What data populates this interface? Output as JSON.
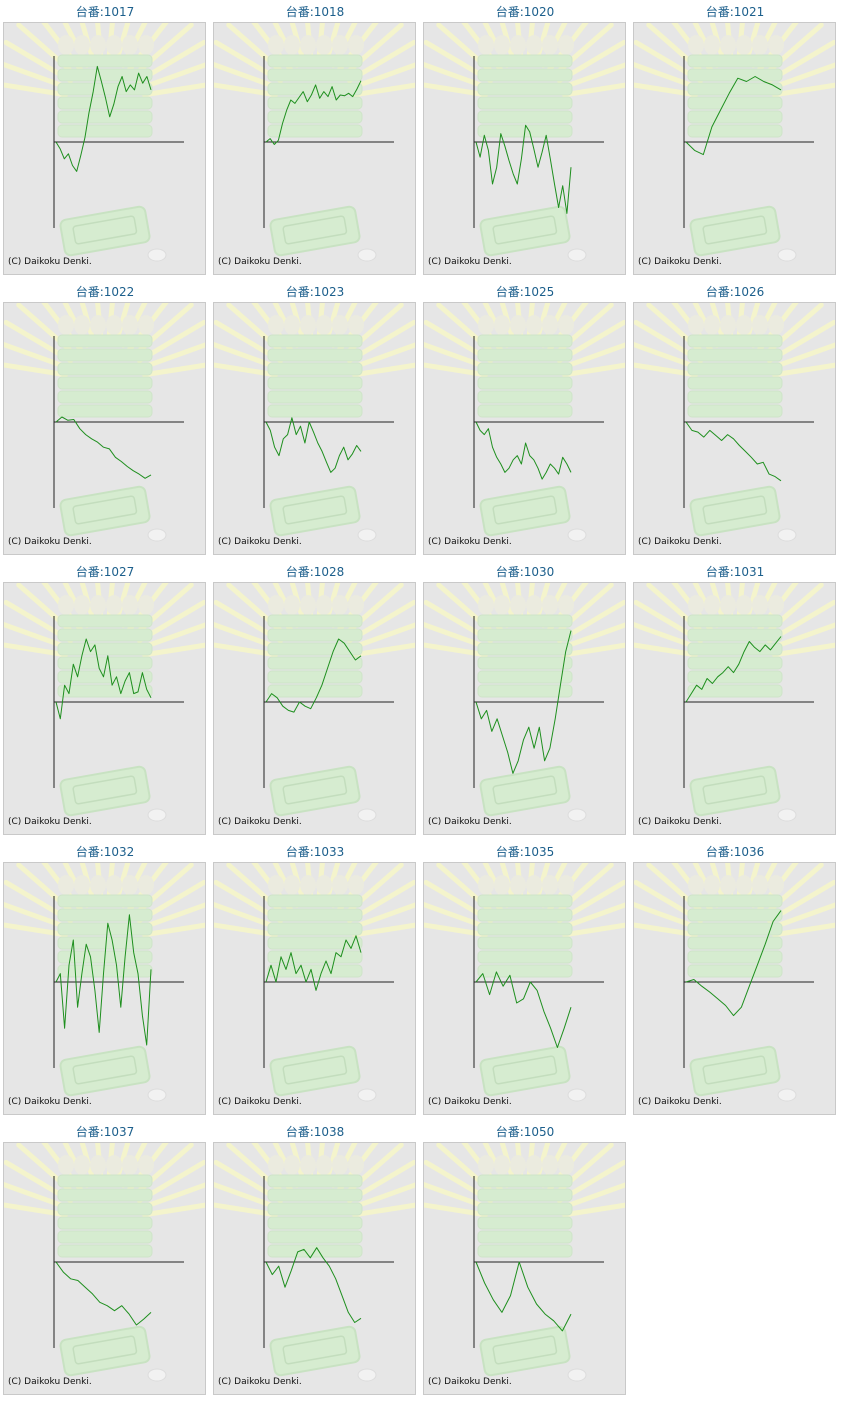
{
  "chart_data": [
    {
      "type": "line",
      "title": "台番:1017",
      "copyright": "(C) Daikoku Denki.",
      "values": [
        0,
        -0.08,
        -0.2,
        -0.14,
        -0.28,
        -0.35,
        -0.16,
        0.05,
        0.35,
        0.6,
        0.9,
        0.72,
        0.52,
        0.3,
        0.45,
        0.66,
        0.78,
        0.6,
        0.68,
        0.62,
        0.82,
        0.7,
        0.78,
        0.62
      ]
    },
    {
      "type": "line",
      "title": "台番:1018",
      "copyright": "(C) Daikoku Denki.",
      "values": [
        0,
        0.04,
        -0.03,
        0.02,
        0.22,
        0.38,
        0.5,
        0.46,
        0.53,
        0.6,
        0.48,
        0.56,
        0.68,
        0.52,
        0.6,
        0.54,
        0.66,
        0.5,
        0.56,
        0.55,
        0.58,
        0.54,
        0.63,
        0.73
      ]
    },
    {
      "type": "line",
      "title": "台番:1020",
      "copyright": "(C) Daikoku Denki.",
      "values": [
        0,
        -0.18,
        0.08,
        -0.1,
        -0.5,
        -0.3,
        0.1,
        -0.05,
        -0.22,
        -0.38,
        -0.5,
        -0.2,
        0.2,
        0.12,
        -0.08,
        -0.3,
        -0.12,
        0.08,
        -0.2,
        -0.5,
        -0.78,
        -0.52,
        -0.85,
        -0.3
      ]
    },
    {
      "type": "line",
      "title": "台番:1021",
      "copyright": "(C) Daikoku Denki.",
      "values": [
        0,
        -0.1,
        -0.15,
        0.18,
        0.38,
        0.58,
        0.76,
        0.72,
        0.78,
        0.72,
        0.68,
        0.62
      ]
    },
    {
      "type": "line",
      "title": "台番:1022",
      "copyright": "(C) Daikoku Denki.",
      "values": [
        0,
        0.06,
        0.02,
        0.03,
        -0.08,
        -0.15,
        -0.2,
        -0.24,
        -0.3,
        -0.32,
        -0.42,
        -0.47,
        -0.53,
        -0.58,
        -0.62,
        -0.67,
        -0.63
      ]
    },
    {
      "type": "line",
      "title": "台番:1023",
      "copyright": "(C) Daikoku Denki.",
      "values": [
        0,
        -0.1,
        -0.3,
        -0.4,
        -0.2,
        -0.15,
        0.05,
        -0.15,
        -0.05,
        -0.25,
        0,
        -0.12,
        -0.25,
        -0.35,
        -0.48,
        -0.6,
        -0.55,
        -0.4,
        -0.3,
        -0.45,
        -0.38,
        -0.28,
        -0.35
      ]
    },
    {
      "type": "line",
      "title": "台番:1025",
      "copyright": "(C) Daikoku Denki.",
      "values": [
        0,
        -0.1,
        -0.15,
        -0.08,
        -0.3,
        -0.42,
        -0.5,
        -0.6,
        -0.55,
        -0.45,
        -0.4,
        -0.5,
        -0.25,
        -0.4,
        -0.45,
        -0.55,
        -0.68,
        -0.6,
        -0.5,
        -0.55,
        -0.62,
        -0.42,
        -0.5,
        -0.6
      ]
    },
    {
      "type": "line",
      "title": "台番:1026",
      "copyright": "(C) Daikoku Denki.",
      "values": [
        0,
        -0.1,
        -0.12,
        -0.18,
        -0.1,
        -0.16,
        -0.22,
        -0.15,
        -0.2,
        -0.28,
        -0.35,
        -0.42,
        -0.5,
        -0.48,
        -0.62,
        -0.65,
        -0.7
      ]
    },
    {
      "type": "line",
      "title": "台番:1027",
      "copyright": "(C) Daikoku Denki.",
      "values": [
        0,
        -0.2,
        0.2,
        0.1,
        0.45,
        0.3,
        0.55,
        0.75,
        0.6,
        0.68,
        0.4,
        0.3,
        0.55,
        0.2,
        0.3,
        0.1,
        0.25,
        0.35,
        0.1,
        0.12,
        0.35,
        0.15,
        0.05
      ]
    },
    {
      "type": "line",
      "title": "台番:1028",
      "copyright": "(C) Daikoku Denki.",
      "values": [
        0,
        0.1,
        0.05,
        -0.05,
        -0.1,
        -0.12,
        0,
        -0.05,
        -0.08,
        0.05,
        0.2,
        0.4,
        0.6,
        0.75,
        0.7,
        0.6,
        0.5,
        0.55
      ]
    },
    {
      "type": "line",
      "title": "台番:1030",
      "copyright": "(C) Daikoku Denki.",
      "values": [
        0,
        -0.2,
        -0.1,
        -0.35,
        -0.2,
        -0.4,
        -0.6,
        -0.85,
        -0.7,
        -0.45,
        -0.3,
        -0.55,
        -0.3,
        -0.7,
        -0.55,
        -0.2,
        0.2,
        0.6,
        0.85
      ]
    },
    {
      "type": "line",
      "title": "台番:1031",
      "copyright": "(C) Daikoku Denki.",
      "values": [
        0,
        0.1,
        0.2,
        0.15,
        0.28,
        0.22,
        0.3,
        0.35,
        0.42,
        0.35,
        0.45,
        0.6,
        0.72,
        0.65,
        0.6,
        0.68,
        0.62,
        0.7,
        0.78
      ]
    },
    {
      "type": "line",
      "title": "台番:1032",
      "copyright": "(C) Daikoku Denki.",
      "values": [
        0,
        0.1,
        -0.55,
        0.2,
        0.5,
        -0.3,
        0.1,
        0.45,
        0.3,
        -0.1,
        -0.6,
        0.1,
        0.7,
        0.5,
        0.2,
        -0.3,
        0.3,
        0.8,
        0.35,
        0.1,
        -0.4,
        -0.75,
        0.15
      ]
    },
    {
      "type": "line",
      "title": "台番:1033",
      "copyright": "(C) Daikoku Denki.",
      "values": [
        0,
        0.2,
        0,
        0.3,
        0.15,
        0.35,
        0.1,
        0.2,
        0,
        0.15,
        -0.1,
        0.1,
        0.25,
        0.1,
        0.35,
        0.3,
        0.5,
        0.4,
        0.55,
        0.35
      ]
    },
    {
      "type": "line",
      "title": "台番:1035",
      "copyright": "(C) Daikoku Denki.",
      "values": [
        0,
        0.1,
        -0.15,
        0.12,
        -0.05,
        0.08,
        -0.25,
        -0.2,
        0,
        -0.1,
        -0.35,
        -0.55,
        -0.78,
        -0.55,
        -0.3
      ]
    },
    {
      "type": "line",
      "title": "台番:1036",
      "copyright": "(C) Daikoku Denki.",
      "values": [
        0,
        0.03,
        -0.05,
        -0.12,
        -0.2,
        -0.28,
        -0.4,
        -0.3,
        -0.05,
        0.2,
        0.45,
        0.72,
        0.85
      ]
    },
    {
      "type": "line",
      "title": "台番:1037",
      "copyright": "(C) Daikoku Denki.",
      "values": [
        0,
        -0.12,
        -0.2,
        -0.22,
        -0.3,
        -0.38,
        -0.48,
        -0.52,
        -0.58,
        -0.52,
        -0.62,
        -0.75,
        -0.68,
        -0.6
      ]
    },
    {
      "type": "line",
      "title": "台番:1038",
      "copyright": "(C) Daikoku Denki.",
      "values": [
        0,
        -0.15,
        -0.05,
        -0.3,
        -0.1,
        0.12,
        0.15,
        0.05,
        0.17,
        0.05,
        -0.05,
        -0.2,
        -0.4,
        -0.6,
        -0.72,
        -0.67
      ]
    },
    {
      "type": "line",
      "title": "台番:1050",
      "copyright": "(C) Daikoku Denki.",
      "values": [
        0,
        -0.25,
        -0.45,
        -0.6,
        -0.4,
        0,
        -0.3,
        -0.5,
        -0.62,
        -0.7,
        -0.82,
        -0.62
      ]
    }
  ]
}
